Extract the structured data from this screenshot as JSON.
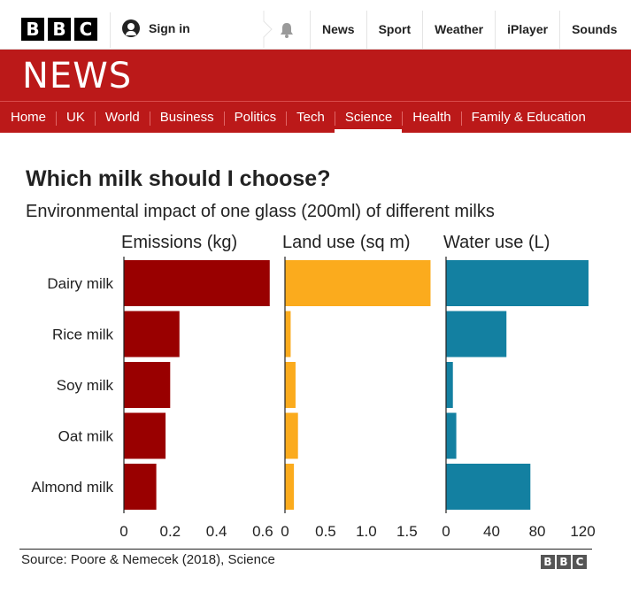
{
  "header": {
    "logo_letters": [
      "B",
      "B",
      "C"
    ],
    "sign_in": "Sign in",
    "top_nav": [
      "News",
      "Sport",
      "Weather",
      "iPlayer",
      "Sounds"
    ],
    "section_title": "NEWS",
    "sub_nav": [
      "Home",
      "UK",
      "World",
      "Business",
      "Politics",
      "Tech",
      "Science",
      "Health",
      "Family & Education"
    ],
    "active_sub_nav": "Science"
  },
  "icons": [
    "user-icon",
    "bell-icon"
  ],
  "colors": {
    "brand_red": "#bb1919",
    "emissions": "#990000",
    "land_use": "#fbab1d",
    "water_use": "#1380a1"
  },
  "chart_data": {
    "type": "bar",
    "orientation": "horizontal",
    "title": "Which milk should I choose?",
    "subtitle": "Environmental impact of one glass (200ml) of different milks",
    "categories": [
      "Dairy milk",
      "Rice milk",
      "Soy milk",
      "Oat milk",
      "Almond milk"
    ],
    "panels": [
      {
        "name": "Emissions (kg)",
        "color": "#990000",
        "values": [
          0.63,
          0.24,
          0.2,
          0.18,
          0.14
        ],
        "xlim": [
          0,
          0.65
        ],
        "ticks": [
          0,
          0.2,
          0.4,
          0.6
        ],
        "tick_labels": [
          "0",
          "0.2",
          "0.4",
          "0.6"
        ]
      },
      {
        "name": "Land use (sq m)",
        "color": "#fbab1d",
        "values": [
          1.79,
          0.07,
          0.13,
          0.16,
          0.11
        ],
        "xlim": [
          0,
          1.85
        ],
        "ticks": [
          0,
          0.5,
          1.0,
          1.5
        ],
        "tick_labels": [
          "0",
          "0.5",
          "1.0",
          "1.5"
        ]
      },
      {
        "name": "Water use (L)",
        "color": "#1380a1",
        "values": [
          125,
          53,
          6,
          9,
          74
        ],
        "xlim": [
          0,
          132
        ],
        "ticks": [
          0,
          40,
          80,
          120
        ],
        "tick_labels": [
          "0",
          "40",
          "80",
          "120"
        ]
      }
    ],
    "grid": false,
    "legend": "none"
  },
  "footer": {
    "source": "Source: Poore & Nemecek (2018), Science",
    "logo_letters": [
      "B",
      "B",
      "C"
    ]
  }
}
